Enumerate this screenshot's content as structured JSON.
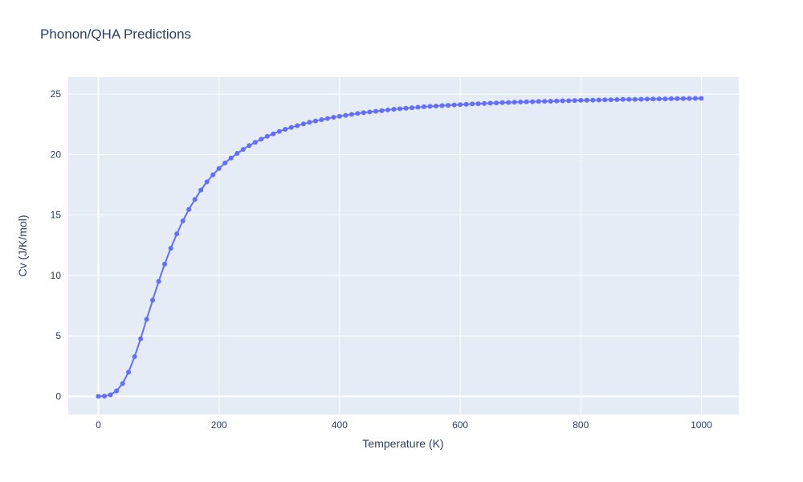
{
  "page": {
    "title": "Phonon/QHA Predictions"
  },
  "chart_data": {
    "type": "line",
    "title": "Phonon/QHA Predictions",
    "xlabel": "Temperature (K)",
    "ylabel": "Cv (J/K/mol)",
    "series_name": "Cv",
    "marker": "circle",
    "grid": "on",
    "legend": "none",
    "xlim": [
      -50,
      1062
    ],
    "ylim": [
      -1.5,
      26.4
    ],
    "x_ticks": [
      0,
      200,
      400,
      600,
      800,
      1000
    ],
    "y_ticks": [
      0,
      5,
      10,
      15,
      20,
      25
    ],
    "x": [
      0,
      10,
      20,
      30,
      40,
      50,
      60,
      70,
      80,
      90,
      100,
      110,
      120,
      130,
      140,
      150,
      160,
      170,
      180,
      190,
      200,
      210,
      220,
      230,
      240,
      250,
      260,
      270,
      280,
      290,
      300,
      310,
      320,
      330,
      340,
      350,
      360,
      370,
      380,
      390,
      400,
      410,
      420,
      430,
      440,
      450,
      460,
      470,
      480,
      490,
      500,
      510,
      520,
      530,
      540,
      550,
      560,
      570,
      580,
      590,
      600,
      610,
      620,
      630,
      640,
      650,
      660,
      670,
      680,
      690,
      700,
      710,
      720,
      730,
      740,
      750,
      760,
      770,
      780,
      790,
      800,
      810,
      820,
      830,
      840,
      850,
      860,
      870,
      880,
      890,
      900,
      910,
      920,
      930,
      940,
      950,
      960,
      970,
      980,
      990,
      1000
    ],
    "y": [
      0.0,
      0.02,
      0.13,
      0.45,
      1.06,
      2.01,
      3.28,
      4.76,
      6.37,
      7.95,
      9.51,
      10.94,
      12.25,
      13.44,
      14.51,
      15.46,
      16.28,
      17.06,
      17.74,
      18.32,
      18.84,
      19.3,
      19.71,
      20.09,
      20.42,
      20.74,
      21.01,
      21.27,
      21.5,
      21.71,
      21.91,
      22.08,
      22.24,
      22.39,
      22.53,
      22.66,
      22.77,
      22.88,
      22.98,
      23.08,
      23.16,
      23.24,
      23.32,
      23.39,
      23.46,
      23.52,
      23.58,
      23.63,
      23.68,
      23.74,
      23.78,
      23.82,
      23.87,
      23.91,
      23.95,
      23.98,
      24.01,
      24.04,
      24.07,
      24.1,
      24.13,
      24.15,
      24.18,
      24.2,
      24.22,
      24.25,
      24.27,
      24.29,
      24.3,
      24.32,
      24.34,
      24.36,
      24.37,
      24.39,
      24.4,
      24.41,
      24.43,
      24.44,
      24.45,
      24.47,
      24.48,
      24.49,
      24.5,
      24.51,
      24.52,
      24.53,
      24.54,
      24.55,
      24.55,
      24.56,
      24.57,
      24.58,
      24.59,
      24.6,
      24.6,
      24.61,
      24.62,
      24.62,
      24.63,
      24.64,
      24.64
    ],
    "colors": {
      "line": "#636efa",
      "marker": "#636efa",
      "plot_bg": "#e5ecf6",
      "grid": "#ffffff",
      "text": "#2a3f5f"
    }
  }
}
